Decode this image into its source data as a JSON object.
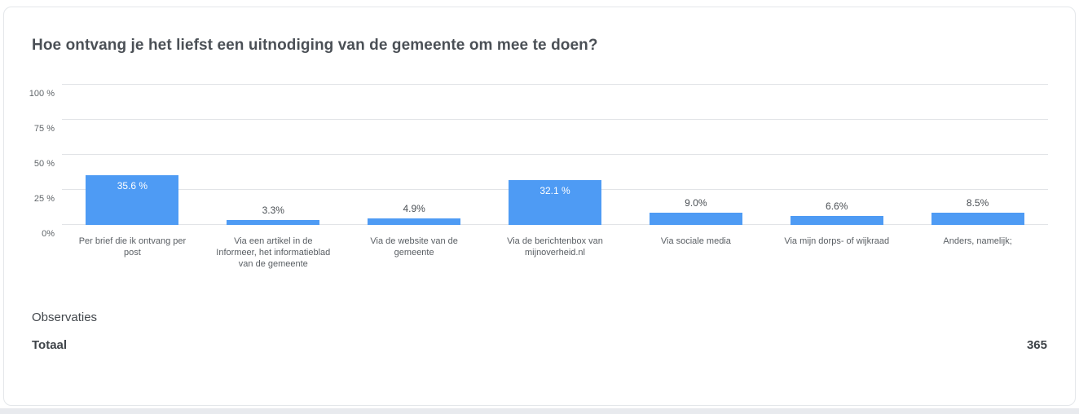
{
  "page": {
    "title": "Hoe ontvang je het liefst een uitnodiging van de gemeente om mee te doen?"
  },
  "chart_data": {
    "type": "bar",
    "title": "Hoe ontvang je het liefst een uitnodiging van de gemeente om mee te doen?",
    "categories": [
      "Per brief die ik ontvang per post",
      "Via een artikel in de Informeer, het informatieblad van de gemeente",
      "Via de website van de gemeente",
      "Via de berichtenbox van mijnoverheid.nl",
      "Via sociale media",
      "Via mijn dorps- of wijkraad",
      "Anders, namelijk;"
    ],
    "values": [
      35.6,
      3.3,
      4.9,
      32.1,
      9.0,
      6.6,
      8.5
    ],
    "value_labels": [
      "35.6 %",
      "3.3%",
      "4.9%",
      "32.1 %",
      "9.0%",
      "6.6%",
      "8.5%"
    ],
    "xlabel": "",
    "ylabel": "",
    "ylim": [
      0,
      100
    ],
    "yticks": [
      0,
      25,
      50,
      75,
      100
    ],
    "ytick_labels": [
      "0%",
      "25 %",
      "50 %",
      "75 %",
      "100 %"
    ],
    "grid": true,
    "legend": false,
    "bar_color": "#4e9bf4",
    "inside_label_threshold": 20
  },
  "summary": {
    "observations_label": "Observaties",
    "total_label": "Totaal",
    "total_value": "365"
  }
}
